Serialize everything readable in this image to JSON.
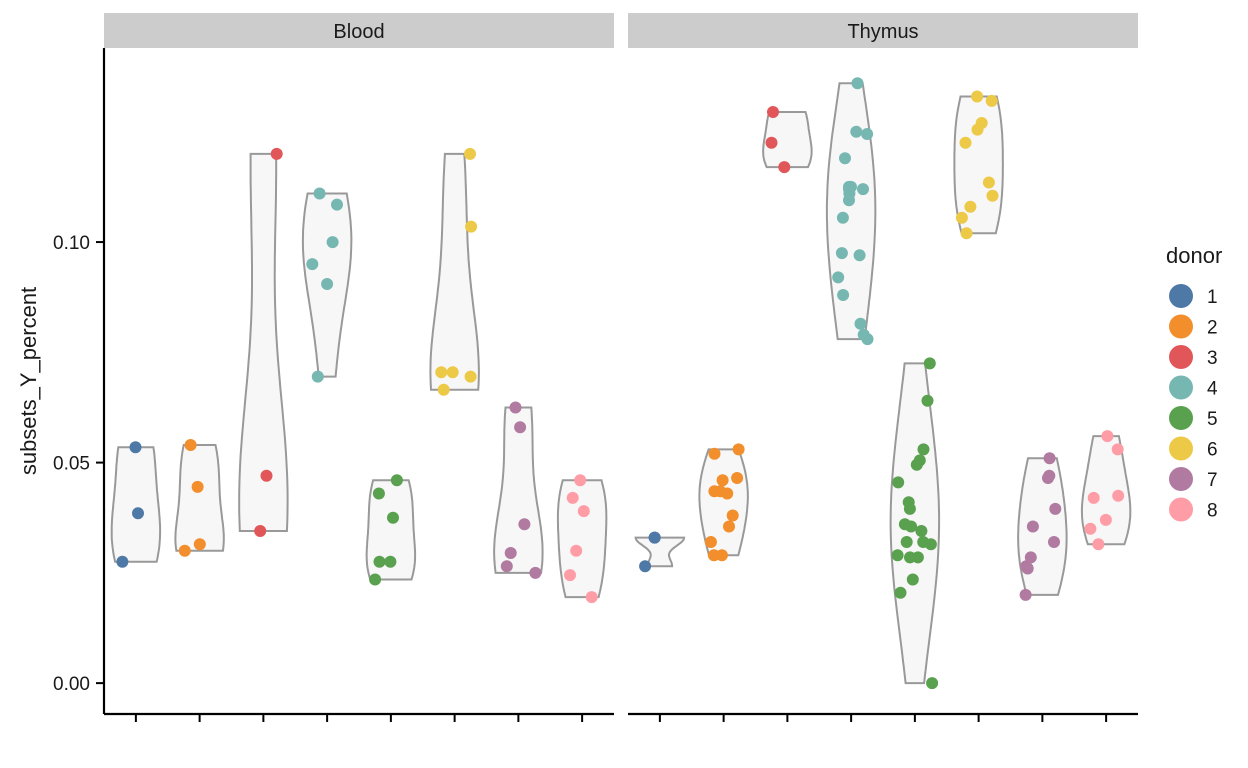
{
  "chart_data": {
    "type": "violin",
    "ylabel": "subsets_Y_percent",
    "xlabel": "",
    "ylim": [
      -0.007,
      0.144
    ],
    "yticks": [
      0.0,
      0.05,
      0.1
    ],
    "ytick_labels": [
      "0.00",
      "0.05",
      "0.10"
    ],
    "x_positions": [
      1,
      2,
      3,
      4,
      5,
      6,
      7,
      8
    ],
    "legend": {
      "title": "donor",
      "position": "right",
      "entries": [
        {
          "label": "1",
          "color": "#4E79A7"
        },
        {
          "label": "2",
          "color": "#F28E2B"
        },
        {
          "label": "3",
          "color": "#E15759"
        },
        {
          "label": "4",
          "color": "#76B7B2"
        },
        {
          "label": "5",
          "color": "#59A14F"
        },
        {
          "label": "6",
          "color": "#EDC948"
        },
        {
          "label": "7",
          "color": "#B07AA1"
        },
        {
          "label": "8",
          "color": "#FF9DA7"
        }
      ]
    },
    "facets": [
      {
        "name": "Blood",
        "groups": [
          {
            "donor": "1",
            "values": [
              0.0535,
              0.0385,
              0.0275
            ]
          },
          {
            "donor": "2",
            "values": [
              0.054,
              0.0445,
              0.0315,
              0.03
            ]
          },
          {
            "donor": "3",
            "values": [
              0.12,
              0.047,
              0.0345
            ]
          },
          {
            "donor": "4",
            "values": [
              0.111,
              0.1085,
              0.1,
              0.095,
              0.0905,
              0.0695
            ]
          },
          {
            "donor": "5",
            "values": [
              0.046,
              0.043,
              0.0375,
              0.0275,
              0.0275,
              0.0235
            ]
          },
          {
            "donor": "6",
            "values": [
              0.12,
              0.1035,
              0.0705,
              0.0705,
              0.0695,
              0.0665
            ]
          },
          {
            "donor": "7",
            "values": [
              0.0625,
              0.058,
              0.036,
              0.0295,
              0.0265,
              0.025
            ]
          },
          {
            "donor": "8",
            "values": [
              0.046,
              0.042,
              0.039,
              0.03,
              0.0245,
              0.0195
            ]
          }
        ]
      },
      {
        "name": "Thymus",
        "groups": [
          {
            "donor": "1",
            "values": [
              0.033,
              0.033,
              0.0265
            ]
          },
          {
            "donor": "2",
            "values": [
              0.053,
              0.052,
              0.0465,
              0.046,
              0.0435,
              0.043,
              0.0435,
              0.038,
              0.0355,
              0.032,
              0.029,
              0.029
            ]
          },
          {
            "donor": "3",
            "values": [
              0.1295,
              0.1225,
              0.117
            ]
          },
          {
            "donor": "4",
            "values": [
              0.136,
              0.125,
              0.1245,
              0.119,
              0.1125,
              0.1125,
              0.112,
              0.112,
              0.111,
              0.1095,
              0.1055,
              0.0975,
              0.097,
              0.092,
              0.088,
              0.0815,
              0.079,
              0.078
            ]
          },
          {
            "donor": "5",
            "values": [
              0.0725,
              0.064,
              0.053,
              0.0505,
              0.0495,
              0.0455,
              0.041,
              0.0395,
              0.036,
              0.0355,
              0.0345,
              0.032,
              0.032,
              0.0315,
              0.029,
              0.0285,
              0.0285,
              0.0235,
              0.0205,
              0.0
            ]
          },
          {
            "donor": "6",
            "values": [
              0.133,
              0.132,
              0.127,
              0.1255,
              0.1225,
              0.1135,
              0.1105,
              0.108,
              0.1055,
              0.102
            ]
          },
          {
            "donor": "7",
            "values": [
              0.051,
              0.047,
              0.0465,
              0.0395,
              0.0355,
              0.032,
              0.0285,
              0.0265,
              0.026,
              0.02
            ]
          },
          {
            "donor": "8",
            "values": [
              0.056,
              0.053,
              0.0425,
              0.042,
              0.037,
              0.035,
              0.0315
            ]
          }
        ]
      }
    ]
  }
}
